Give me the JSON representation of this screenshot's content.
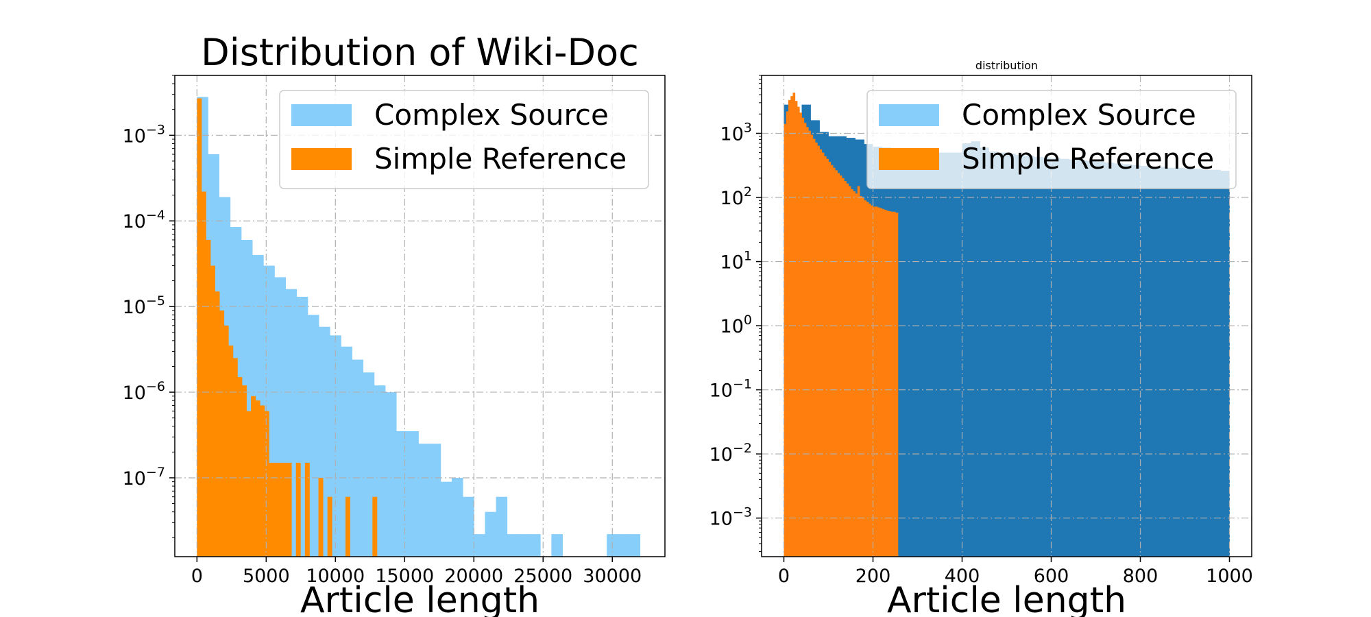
{
  "colors": {
    "complex_light": "#87cefa",
    "simple_orange": "#ff8c00",
    "complex_dark": "#1f77b4",
    "simple_orange_2": "#ff7f0e",
    "grid": "#b0b0b0",
    "axis": "#000000"
  },
  "chart_data": [
    {
      "type": "bar",
      "title": "Distribution of Wiki-Doc",
      "xlabel": "Article length",
      "ylabel": "",
      "yscale": "log",
      "xlim": [
        -1600,
        33800
      ],
      "ylim": [
        1.2e-08,
        0.005
      ],
      "grid": true,
      "legend_position": "top-right",
      "x_ticks": [
        0,
        5000,
        10000,
        15000,
        20000,
        25000,
        30000
      ],
      "x_tick_labels": [
        "0",
        "5000",
        "10000",
        "15000",
        "20000",
        "25000",
        "30000"
      ],
      "y_ticks": [
        0.001,
        0.0001,
        1e-05,
        1e-06,
        1e-07
      ],
      "y_tick_labels": [
        {
          "base": "10",
          "exp": "−3"
        },
        {
          "base": "10",
          "exp": "−4"
        },
        {
          "base": "10",
          "exp": "−5"
        },
        {
          "base": "10",
          "exp": "−6"
        },
        {
          "base": "10",
          "exp": "−7"
        }
      ],
      "series": [
        {
          "name": "Complex Source",
          "color_key": "complex_light",
          "bin_edges": [
            0,
            800,
            1600,
            2400,
            3200,
            4000,
            4800,
            5600,
            6400,
            7200,
            8000,
            8800,
            9600,
            10400,
            11200,
            12000,
            12800,
            13600,
            14400,
            15200,
            16000,
            16800,
            17600,
            18400,
            19200,
            20000,
            20800,
            21600,
            22400,
            23200,
            24000,
            24800,
            25600,
            26400,
            27200,
            28000,
            28800,
            29600,
            30400,
            31200,
            32000
          ],
          "values": [
            0.0028,
            0.0006,
            0.00019,
            8.5e-05,
            6e-05,
            4e-05,
            3e-05,
            2.2e-05,
            1.6e-05,
            1.3e-05,
            8e-06,
            5.8e-06,
            4.6e-06,
            3.4e-06,
            2.4e-06,
            1.7e-06,
            1.2e-06,
            1e-06,
            3.5e-07,
            3.5e-07,
            2.5e-07,
            2.5e-07,
            9e-08,
            1e-07,
            6e-08,
            2.2e-08,
            4e-08,
            6e-08,
            2.2e-08,
            2.2e-08,
            2.2e-08,
            0,
            2.2e-08,
            0,
            0,
            0,
            0,
            2.2e-08,
            2.2e-08,
            2.2e-08
          ]
        },
        {
          "name": "Simple Reference",
          "color_key": "simple_orange",
          "bin_edges": [
            0,
            325,
            650,
            975,
            1300,
            1625,
            1950,
            2275,
            2600,
            2925,
            3250,
            3575,
            3900,
            4225,
            4550,
            4875,
            5200,
            5525,
            5850,
            6175,
            6500,
            6825,
            7150,
            7475,
            7800,
            8125,
            8450,
            8775,
            9100,
            9425,
            9750,
            10075,
            10400,
            10725,
            11050,
            11375,
            11700,
            12025,
            12350,
            12675,
            13000
          ],
          "values": [
            0.0027,
            0.00022,
            6e-05,
            3e-05,
            1.5e-05,
            9e-06,
            6e-06,
            3.5e-06,
            2.5e-06,
            1.5e-06,
            1.2e-06,
            6e-07,
            9e-07,
            8e-07,
            7e-07,
            6e-07,
            1.5e-07,
            1.5e-07,
            1.5e-07,
            1.5e-07,
            1.5e-07,
            0,
            1.5e-07,
            0,
            1.5e-07,
            0,
            0,
            1e-07,
            0,
            6e-08,
            0,
            0,
            0,
            6e-08,
            0,
            0,
            0,
            0,
            0,
            6e-08
          ]
        }
      ]
    },
    {
      "type": "bar",
      "title": "distribution",
      "xlabel": "Article length",
      "ylabel": "",
      "yscale": "log",
      "xlim": [
        -50,
        1050
      ],
      "ylim": [
        0.00025,
        8000
      ],
      "grid": true,
      "legend_position": "top-right",
      "x_ticks": [
        0,
        200,
        400,
        600,
        800,
        1000
      ],
      "x_tick_labels": [
        "0",
        "200",
        "400",
        "600",
        "800",
        "1000"
      ],
      "y_ticks": [
        1000,
        100,
        10,
        1,
        0.1,
        0.01,
        0.001
      ],
      "y_tick_labels": [
        {
          "base": "10",
          "exp": "3"
        },
        {
          "base": "10",
          "exp": "2"
        },
        {
          "base": "10",
          "exp": "1"
        },
        {
          "base": "10",
          "exp": "0"
        },
        {
          "base": "10",
          "exp": "−1"
        },
        {
          "base": "10",
          "exp": "−2"
        },
        {
          "base": "10",
          "exp": "−3"
        }
      ],
      "legend": [
        "Complex Source",
        "Simple Reference"
      ],
      "series": [
        {
          "name": "Complex Source",
          "color_key": "complex_dark",
          "bin_edges": [
            0,
            20,
            40,
            60,
            80,
            100,
            120,
            140,
            160,
            180,
            200,
            220,
            240,
            260,
            280,
            300,
            320,
            340,
            360,
            380,
            400,
            420,
            440,
            460,
            480,
            500,
            520,
            540,
            560,
            580,
            600,
            620,
            640,
            660,
            680,
            700,
            720,
            740,
            760,
            780,
            800,
            820,
            840,
            860,
            880,
            900,
            920,
            940,
            960,
            980,
            1000
          ],
          "values": [
            2800,
            1700,
            2800,
            1600,
            1050,
            900,
            900,
            850,
            800,
            680,
            620,
            600,
            580,
            560,
            540,
            520,
            520,
            500,
            500,
            500,
            700,
            750,
            600,
            520,
            500,
            480,
            460,
            450,
            430,
            420,
            410,
            400,
            390,
            380,
            370,
            360,
            350,
            340,
            330,
            320,
            310,
            300,
            300,
            290,
            290,
            280,
            280,
            270,
            270,
            260
          ]
        },
        {
          "name": "Simple Reference",
          "color_key": "simple_orange_2",
          "bin_edges": [
            0,
            5,
            10,
            15,
            20,
            25,
            30,
            35,
            40,
            45,
            50,
            55,
            60,
            65,
            70,
            75,
            80,
            85,
            90,
            95,
            100,
            105,
            110,
            115,
            120,
            125,
            130,
            135,
            140,
            145,
            150,
            155,
            160,
            165,
            170,
            175,
            180,
            185,
            190,
            195,
            200,
            205,
            210,
            215,
            220,
            225,
            230,
            235,
            240,
            245,
            250,
            256
          ],
          "values": [
            1400,
            2200,
            3300,
            3800,
            4300,
            3200,
            2600,
            2100,
            1750,
            1450,
            1250,
            1100,
            950,
            820,
            720,
            640,
            560,
            500,
            440,
            400,
            360,
            320,
            290,
            265,
            240,
            220,
            200,
            180,
            165,
            150,
            135,
            125,
            115,
            150,
            105,
            98,
            90,
            85,
            80,
            75,
            72,
            72,
            70,
            68,
            66,
            64,
            62,
            61,
            60,
            60,
            58
          ]
        }
      ]
    }
  ]
}
